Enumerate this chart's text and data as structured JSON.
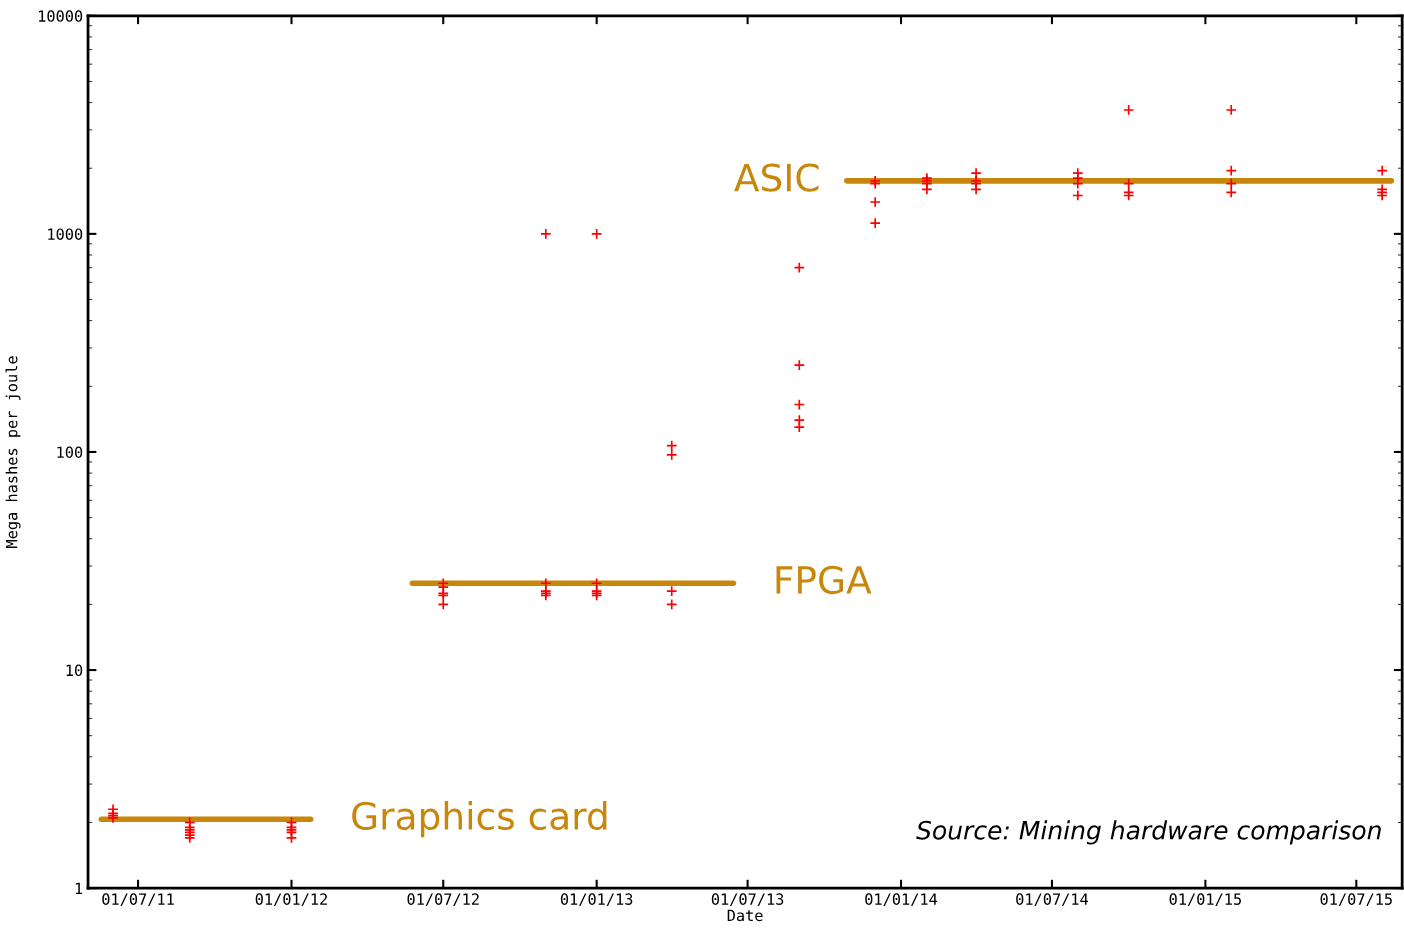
{
  "chart_data": {
    "type": "scatter",
    "xlabel": "Date",
    "ylabel": "Mega hashes per joule",
    "annotations": [
      "Source: Mining hardware comparison"
    ],
    "log": "y",
    "grid": false,
    "legend": false,
    "xlim": [
      "2011-05-02",
      "2015-08-25"
    ],
    "ylim": [
      1,
      10000
    ],
    "xticks": [
      {
        "value": "2011-07-01",
        "label": "01/07/11"
      },
      {
        "value": "2012-01-01",
        "label": "01/01/12"
      },
      {
        "value": "2012-07-01",
        "label": "01/07/12"
      },
      {
        "value": "2013-01-01",
        "label": "01/01/13"
      },
      {
        "value": "2013-07-01",
        "label": "01/07/13"
      },
      {
        "value": "2014-01-01",
        "label": "01/01/14"
      },
      {
        "value": "2014-07-01",
        "label": "01/07/14"
      },
      {
        "value": "2015-01-01",
        "label": "01/01/15"
      },
      {
        "value": "2015-07-01",
        "label": "01/07/15"
      }
    ],
    "yticks": [
      1,
      10,
      100,
      1000,
      10000
    ],
    "series": [
      {
        "type": "line",
        "name": "Graphics card",
        "color": "#c8860a",
        "x": [
          "2011-05-18",
          "2012-01-24"
        ],
        "values": [
          2.07,
          2.07
        ],
        "marker": "none"
      },
      {
        "type": "line",
        "name": "FPGA",
        "color": "#c8860a",
        "x": [
          "2012-05-25",
          "2013-06-14"
        ],
        "values": [
          25,
          25
        ],
        "marker": "none"
      },
      {
        "type": "line",
        "name": "ASIC",
        "color": "#c8860a",
        "x": [
          "2013-10-28",
          "2015-08-12"
        ],
        "values": [
          1750,
          1750
        ],
        "marker": "none"
      },
      {
        "color": "#ff0000",
        "marker": "cross",
        "x": [
          "2011-06-01",
          "2011-06-01",
          "2011-06-01",
          "2011-06-01",
          "2011-09-01",
          "2011-09-01",
          "2011-09-01",
          "2011-09-01",
          "2011-09-01",
          "2011-09-01",
          "2012-01-01",
          "2012-01-01",
          "2012-01-01",
          "2012-01-01",
          "2012-01-01",
          "2012-07-01",
          "2012-07-01",
          "2012-07-01",
          "2012-07-01",
          "2012-07-01",
          "2012-11-01",
          "2012-11-01",
          "2012-11-01",
          "2012-11-01",
          "2012-11-01",
          "2013-01-01",
          "2013-01-01",
          "2013-01-01",
          "2013-01-01",
          "2013-01-01",
          "2013-04-01",
          "2013-04-01",
          "2013-04-01",
          "2013-04-01",
          "2013-09-01",
          "2013-09-01",
          "2013-09-01",
          "2013-09-01",
          "2013-09-01",
          "2013-12-01",
          "2013-12-01",
          "2013-12-01",
          "2013-12-01",
          "2014-02-01",
          "2014-02-01",
          "2014-02-01",
          "2014-02-01",
          "2014-04-01",
          "2014-04-01",
          "2014-04-01",
          "2014-04-01",
          "2014-08-01",
          "2014-08-01",
          "2014-08-01",
          "2014-08-01",
          "2014-10-01",
          "2014-10-01",
          "2014-10-01",
          "2014-10-01",
          "2015-02-01",
          "2015-02-01",
          "2015-02-01",
          "2015-02-01",
          "2015-08-01",
          "2015-08-01",
          "2015-08-01",
          "2015-08-01"
        ],
        "values": [
          2.3,
          2.2,
          2.15,
          2.1,
          2.0,
          1.9,
          1.85,
          1.8,
          1.75,
          1.7,
          2.0,
          1.9,
          1.85,
          1.8,
          1.7,
          25,
          24,
          22.5,
          22,
          20,
          1000,
          25,
          23,
          22.5,
          22,
          1000,
          25,
          23,
          22.5,
          22,
          107,
          97,
          23,
          20,
          700,
          250,
          165,
          140,
          130,
          1750,
          1700,
          1400,
          1120,
          1800,
          1750,
          1700,
          1600,
          1900,
          1750,
          1700,
          1600,
          1900,
          1800,
          1700,
          1500,
          3700,
          1700,
          1550,
          1500,
          3700,
          1950,
          1700,
          1550,
          1600,
          1550,
          1500,
          1950
        ]
      }
    ]
  }
}
